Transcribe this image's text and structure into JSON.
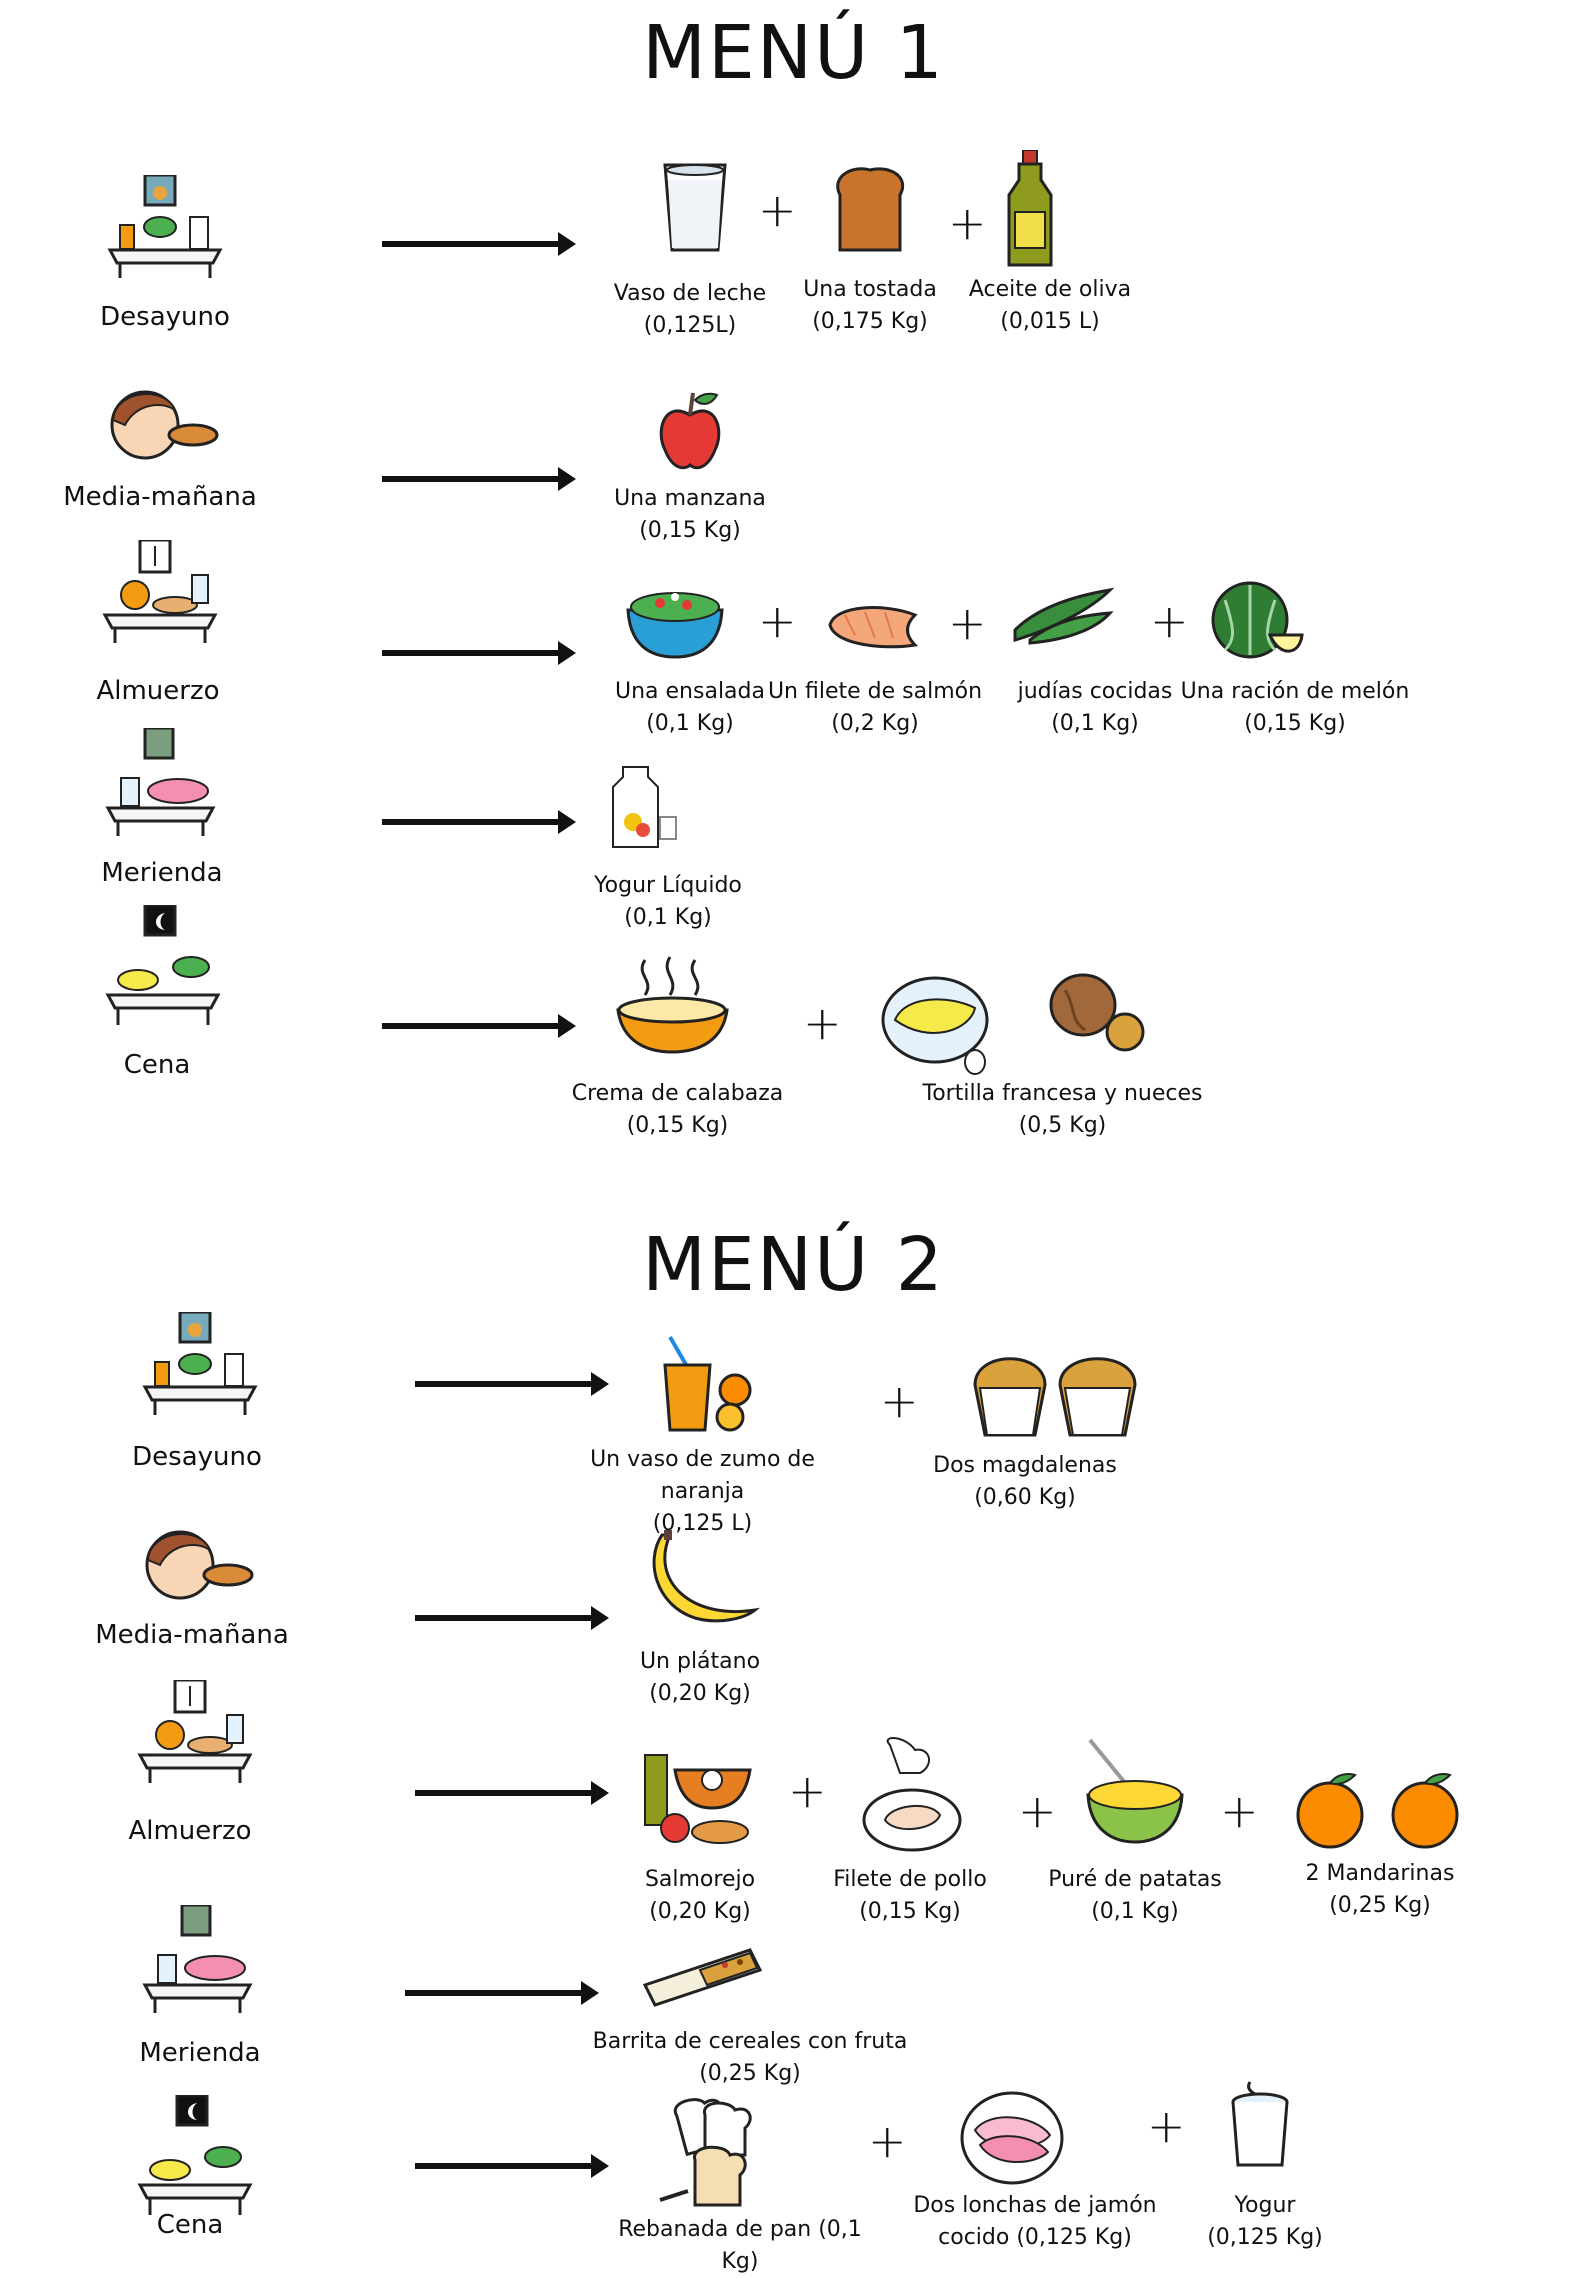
{
  "menus": [
    {
      "title": "MENÚ 1",
      "meals": [
        {
          "label": "Desayuno",
          "foods": [
            {
              "name": "Vaso de leche",
              "qty": "(0,125L)"
            },
            {
              "name": "Una tostada",
              "qty": "(0,175 Kg)"
            },
            {
              "name": "Aceite de oliva",
              "qty": "(0,015 L)"
            }
          ]
        },
        {
          "label": "Media-mañana",
          "foods": [
            {
              "name": "Una manzana",
              "qty": "(0,15 Kg)"
            }
          ]
        },
        {
          "label": "Almuerzo",
          "foods": [
            {
              "name": "Una ensalada",
              "qty": "(0,1 Kg)"
            },
            {
              "name": "Un filete de salmón",
              "qty": "(0,2 Kg)"
            },
            {
              "name": "judías cocidas",
              "qty": "(0,1 Kg)"
            },
            {
              "name": "Una ración de melón",
              "qty": "(0,15 Kg)"
            }
          ]
        },
        {
          "label": "Merienda",
          "foods": [
            {
              "name": "Yogur Líquido",
              "qty": "(0,1 Kg)"
            }
          ]
        },
        {
          "label": "Cena",
          "foods": [
            {
              "name": "Crema de calabaza",
              "qty": "(0,15 Kg)"
            },
            {
              "name": "Tortilla francesa y nueces",
              "qty": "(0,5 Kg)"
            }
          ]
        }
      ]
    },
    {
      "title": "MENÚ 2",
      "meals": [
        {
          "label": "Desayuno",
          "foods": [
            {
              "name": "Un vaso de zumo de naranja",
              "qty": "(0,125 L)"
            },
            {
              "name": "Dos magdalenas",
              "qty": "(0,60 Kg)"
            }
          ]
        },
        {
          "label": "Media-mañana",
          "foods": [
            {
              "name": "Un plátano",
              "qty": "(0,20 Kg)"
            }
          ]
        },
        {
          "label": "Almuerzo",
          "foods": [
            {
              "name": "Salmorejo",
              "qty": "(0,20 Kg)"
            },
            {
              "name": "Filete de pollo",
              "qty": "(0,15 Kg)"
            },
            {
              "name": "Puré de patatas",
              "qty": "(0,1 Kg)"
            },
            {
              "name": "2 Mandarinas",
              "qty": "(0,25 Kg)"
            }
          ]
        },
        {
          "label": "Merienda",
          "foods": [
            {
              "name": "Barrita de cereales con fruta",
              "qty": "(0,25 Kg)"
            }
          ]
        },
        {
          "label": "Cena",
          "foods": [
            {
              "name": "Rebanada de pan (0,1 Kg)",
              "qty": ""
            },
            {
              "name": "Dos lonchas de jamón",
              "qty": "cocido (0,125 Kg)"
            },
            {
              "name": "Yogur",
              "qty": "(0,125 Kg)"
            }
          ]
        }
      ]
    }
  ],
  "symbols": {
    "plus": "+"
  }
}
